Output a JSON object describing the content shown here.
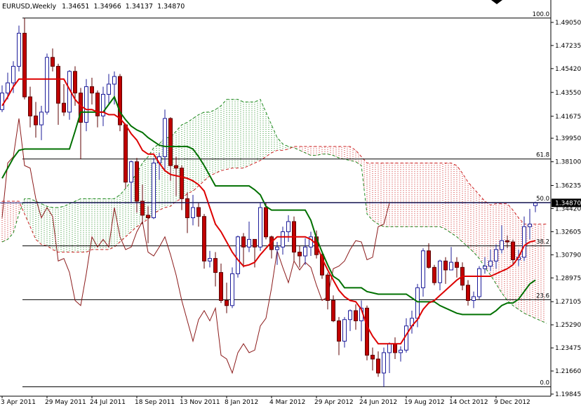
{
  "chart_data": {
    "type": "candlestick",
    "title": "EURUSD,Weekly",
    "header_values": [
      "1.34651",
      "1.34966",
      "1.34137",
      "1.34870"
    ],
    "price_label": "1.34870",
    "categories": [
      "3 Apr 2011",
      null,
      null,
      null,
      null,
      null,
      null,
      null,
      "29 May 2011",
      null,
      null,
      null,
      null,
      null,
      null,
      null,
      "24 Jul 2011",
      null,
      null,
      null,
      null,
      null,
      null,
      null,
      "18 Sep 2011",
      null,
      null,
      null,
      null,
      null,
      null,
      null,
      "13 Nov 2011",
      null,
      null,
      null,
      null,
      null,
      null,
      null,
      "8 Jan 2012",
      null,
      null,
      null,
      null,
      null,
      null,
      null,
      "4 Mar 2012",
      null,
      null,
      null,
      null,
      null,
      null,
      null,
      "29 Apr 2012",
      null,
      null,
      null,
      null,
      null,
      null,
      null,
      "24 Jun 2012",
      null,
      null,
      null,
      null,
      null,
      null,
      null,
      "19 Aug 2012",
      null,
      null,
      null,
      null,
      null,
      null,
      null,
      "14 Oct 2012",
      null,
      null,
      null,
      null,
      null,
      null,
      null,
      "9 Dec 2012",
      null,
      null,
      null,
      null,
      null,
      null,
      null,
      null,
      null
    ],
    "open": [
      1.422,
      1.435,
      1.443,
      1.456,
      1.482,
      1.432,
      1.417,
      1.41,
      1.42,
      1.463,
      1.456,
      1.427,
      1.42,
      1.452,
      1.435,
      1.412,
      1.44,
      1.435,
      1.417,
      1.434,
      1.442,
      1.448,
      1.41,
      1.365,
      1.381,
      1.35,
      1.339,
      1.337,
      1.38,
      1.385,
      1.415,
      1.378,
      1.376,
      1.352,
      1.337,
      1.345,
      1.338,
      1.303,
      1.305,
      1.294,
      1.272,
      1.268,
      1.293,
      1.322,
      1.314,
      1.32,
      1.314,
      1.345,
      1.322,
      1.312,
      1.314,
      1.326,
      1.334,
      1.31,
      1.307,
      1.314,
      1.322,
      1.308,
      1.292,
      1.272,
      1.256,
      1.24,
      1.257,
      1.264,
      1.256,
      1.266,
      1.229,
      1.226,
      1.215,
      1.231,
      1.238,
      1.231,
      1.233,
      1.252,
      1.258,
      1.282,
      1.311,
      1.298,
      1.286,
      1.303,
      1.296,
      1.302,
      1.298,
      1.284,
      1.272,
      1.275,
      1.297,
      1.299,
      1.303,
      1.312,
      1.319,
      1.318,
      1.304,
      1.306,
      1.33,
      1.34651,
      null,
      null
    ],
    "high": [
      1.441,
      1.451,
      1.46,
      1.488,
      1.4939,
      1.44,
      1.428,
      1.425,
      1.466,
      1.47,
      1.458,
      1.442,
      1.453,
      1.456,
      1.439,
      1.446,
      1.447,
      1.437,
      1.44,
      1.45,
      1.452,
      1.45,
      1.411,
      1.382,
      1.384,
      1.363,
      1.346,
      1.384,
      1.388,
      1.422,
      1.416,
      1.385,
      1.378,
      1.357,
      1.355,
      1.349,
      1.34,
      1.311,
      1.31,
      1.301,
      1.286,
      1.298,
      1.323,
      1.325,
      1.334,
      1.32,
      1.349,
      1.349,
      1.323,
      1.318,
      1.33,
      1.339,
      1.338,
      1.315,
      1.321,
      1.326,
      1.327,
      1.311,
      1.294,
      1.276,
      1.259,
      1.259,
      1.265,
      1.269,
      1.272,
      1.268,
      1.235,
      1.232,
      1.235,
      1.239,
      1.243,
      1.236,
      1.258,
      1.264,
      1.285,
      1.313,
      1.317,
      1.3,
      1.304,
      1.306,
      1.314,
      1.306,
      1.302,
      1.288,
      1.279,
      1.299,
      1.306,
      1.312,
      1.316,
      1.331,
      1.323,
      1.32,
      1.312,
      1.338,
      1.344,
      1.34966,
      null,
      null
    ],
    "low": [
      1.42,
      1.43,
      1.435,
      1.452,
      1.43,
      1.408,
      1.4,
      1.398,
      1.418,
      1.452,
      1.41,
      1.417,
      1.414,
      1.425,
      1.383,
      1.405,
      1.426,
      1.408,
      1.409,
      1.426,
      1.426,
      1.405,
      1.36,
      1.349,
      1.341,
      1.332,
      1.317,
      1.336,
      1.367,
      1.375,
      1.366,
      1.354,
      1.343,
      1.325,
      1.331,
      1.33,
      1.297,
      1.298,
      1.283,
      1.27,
      1.262,
      1.266,
      1.29,
      1.298,
      1.31,
      1.298,
      1.311,
      1.32,
      1.305,
      1.3,
      1.308,
      1.318,
      1.303,
      1.298,
      1.3,
      1.307,
      1.305,
      1.289,
      1.265,
      1.255,
      1.229,
      1.235,
      1.248,
      1.249,
      1.24,
      1.225,
      1.217,
      1.212,
      1.2042,
      1.215,
      1.226,
      1.224,
      1.231,
      1.246,
      1.251,
      1.275,
      1.297,
      1.284,
      1.28,
      1.285,
      1.296,
      1.29,
      1.28,
      1.268,
      1.266,
      1.273,
      1.293,
      1.295,
      1.297,
      1.309,
      1.313,
      1.3,
      1.299,
      1.303,
      1.32,
      1.34137,
      null,
      null
    ],
    "close": [
      1.435,
      1.443,
      1.456,
      1.482,
      1.432,
      1.417,
      1.41,
      1.42,
      1.463,
      1.456,
      1.427,
      1.42,
      1.452,
      1.435,
      1.412,
      1.44,
      1.435,
      1.417,
      1.434,
      1.442,
      1.448,
      1.41,
      1.365,
      1.381,
      1.35,
      1.339,
      1.337,
      1.38,
      1.385,
      1.415,
      1.378,
      1.376,
      1.352,
      1.337,
      1.345,
      1.338,
      1.303,
      1.305,
      1.294,
      1.272,
      1.268,
      1.293,
      1.322,
      1.314,
      1.32,
      1.314,
      1.345,
      1.322,
      1.312,
      1.314,
      1.326,
      1.334,
      1.31,
      1.307,
      1.314,
      1.322,
      1.308,
      1.292,
      1.272,
      1.256,
      1.24,
      1.257,
      1.264,
      1.256,
      1.266,
      1.229,
      1.226,
      1.215,
      1.231,
      1.238,
      1.231,
      1.233,
      1.252,
      1.258,
      1.282,
      1.311,
      1.298,
      1.286,
      1.303,
      1.296,
      1.302,
      1.298,
      1.284,
      1.272,
      1.275,
      1.297,
      1.299,
      1.303,
      1.312,
      1.319,
      1.318,
      1.304,
      1.306,
      1.33,
      1.332,
      1.3487,
      null,
      null
    ],
    "up_color": "#ffffff",
    "up_edge_color": "#1c1c9a",
    "down_color": "#c00000",
    "down_edge_color": "#5c0000",
    "overlays": {
      "senkou_a": {
        "color": "#1f8a1f",
        "values": [
          1.318,
          1.32,
          1.325,
          1.34,
          1.352,
          1.352,
          1.35,
          1.348,
          1.346,
          1.345,
          1.345,
          1.346,
          1.348,
          1.35,
          1.352,
          1.352,
          1.352,
          1.352,
          1.352,
          1.352,
          1.352,
          1.355,
          1.36,
          1.366,
          1.372,
          1.38,
          1.385,
          1.392,
          1.395,
          1.4,
          1.4,
          1.405,
          1.41,
          1.412,
          1.415,
          1.418,
          1.42,
          1.42,
          1.422,
          1.425,
          1.43,
          1.43,
          1.43,
          1.428,
          1.428,
          1.428,
          1.43,
          1.42,
          1.41,
          1.4,
          1.395,
          1.393,
          1.392,
          1.39,
          1.388,
          1.386,
          1.386,
          1.387,
          1.387,
          1.386,
          1.384,
          1.383,
          1.382,
          1.381,
          1.378,
          1.34,
          1.335,
          1.332,
          1.33,
          1.33,
          1.33,
          1.33,
          1.33,
          1.33,
          1.33,
          1.33,
          1.33,
          1.33,
          1.33,
          1.328,
          1.325,
          1.322,
          1.318,
          1.314,
          1.31,
          1.305,
          1.298,
          1.292,
          1.285,
          1.278,
          1.272,
          1.268,
          1.265,
          1.262,
          1.26,
          1.258,
          1.256,
          1.254
        ]
      },
      "senkou_b": {
        "color": "#cc2020",
        "values": [
          1.35,
          1.35,
          1.35,
          1.35,
          1.34,
          1.33,
          1.32,
          1.316,
          1.315,
          1.312,
          1.31,
          1.31,
          1.31,
          1.31,
          1.31,
          1.31,
          1.312,
          1.312,
          1.312,
          1.312,
          1.314,
          1.318,
          1.322,
          1.326,
          1.33,
          1.333,
          1.336,
          1.34,
          1.343,
          1.345,
          1.346,
          1.35,
          1.352,
          1.356,
          1.358,
          1.362,
          1.366,
          1.37,
          1.372,
          1.374,
          1.375,
          1.376,
          1.376,
          1.376,
          1.378,
          1.38,
          1.382,
          1.385,
          1.388,
          1.39,
          1.39,
          1.391,
          1.393,
          1.393,
          1.393,
          1.393,
          1.393,
          1.393,
          1.393,
          1.393,
          1.393,
          1.393,
          1.393,
          1.39,
          1.385,
          1.38,
          1.38,
          1.38,
          1.38,
          1.38,
          1.38,
          1.38,
          1.38,
          1.38,
          1.38,
          1.38,
          1.38,
          1.38,
          1.38,
          1.38,
          1.38,
          1.378,
          1.372,
          1.365,
          1.36,
          1.355,
          1.35,
          1.347,
          1.348,
          1.348,
          1.348,
          1.343,
          1.337,
          1.332,
          1.332,
          1.332,
          1.332,
          1.332
        ]
      },
      "chikou_span": {
        "color": "#8b1a1a",
        "width": 1,
        "values": [
          1.337,
          1.38,
          1.385,
          1.415,
          1.378,
          1.376,
          1.352,
          1.337,
          1.345,
          1.338,
          1.303,
          1.305,
          1.294,
          1.272,
          1.268,
          1.293,
          1.322,
          1.314,
          1.32,
          1.314,
          1.345,
          1.322,
          1.312,
          1.314,
          1.326,
          1.334,
          1.31,
          1.307,
          1.314,
          1.322,
          1.308,
          1.292,
          1.272,
          1.256,
          1.24,
          1.257,
          1.264,
          1.256,
          1.266,
          1.229,
          1.226,
          1.215,
          1.231,
          1.238,
          1.231,
          1.233,
          1.252,
          1.258,
          1.282,
          1.311,
          1.298,
          1.286,
          1.303,
          1.296,
          1.302,
          1.298,
          1.284,
          1.272,
          1.275,
          1.297,
          1.299,
          1.303,
          1.312,
          1.319,
          1.318,
          1.304,
          1.306,
          1.33,
          1.332,
          1.3487,
          null,
          null,
          null,
          null,
          null,
          null,
          null,
          null,
          null,
          null,
          null,
          null,
          null,
          null,
          null,
          null,
          null,
          null,
          null,
          null,
          null,
          null,
          null,
          null,
          null,
          null,
          null,
          null
        ]
      },
      "kijun_sen": {
        "color": "#007000",
        "width": 2,
        "values": [
          1.368,
          1.376,
          1.384,
          1.39,
          1.391,
          1.391,
          1.391,
          1.391,
          1.391,
          1.391,
          1.391,
          1.391,
          1.391,
          1.405,
          1.42,
          1.42,
          1.42,
          1.42,
          1.42,
          1.426,
          1.432,
          1.42,
          1.414,
          1.409,
          1.406,
          1.404,
          1.4,
          1.397,
          1.394,
          1.393,
          1.393,
          1.393,
          1.393,
          1.393,
          1.391,
          1.385,
          1.378,
          1.37,
          1.362,
          1.362,
          1.362,
          1.362,
          1.362,
          1.362,
          1.362,
          1.359,
          1.355,
          1.346,
          1.343,
          1.343,
          1.343,
          1.343,
          1.343,
          1.343,
          1.343,
          1.335,
          1.321,
          1.31,
          1.3,
          1.291,
          1.288,
          1.282,
          1.282,
          1.282,
          1.282,
          1.279,
          1.278,
          1.277,
          1.277,
          1.277,
          1.277,
          1.277,
          1.277,
          1.274,
          1.271,
          1.271,
          1.271,
          1.271,
          1.268,
          1.266,
          1.264,
          1.262,
          1.261,
          1.261,
          1.261,
          1.261,
          1.261,
          1.261,
          1.264,
          1.268,
          1.27,
          1.27,
          1.273,
          1.279,
          1.285,
          1.288,
          null,
          null
        ]
      },
      "tenkan_sen": {
        "color": "#dd0000",
        "width": 2,
        "values": [
          1.425,
          1.432,
          1.44,
          1.446,
          1.446,
          1.446,
          1.446,
          1.446,
          1.446,
          1.446,
          1.446,
          1.446,
          1.438,
          1.43,
          1.425,
          1.422,
          1.422,
          1.42,
          1.42,
          1.418,
          1.418,
          1.415,
          1.41,
          1.403,
          1.398,
          1.39,
          1.387,
          1.387,
          1.38,
          1.374,
          1.371,
          1.37,
          1.369,
          1.368,
          1.366,
          1.363,
          1.358,
          1.345,
          1.332,
          1.326,
          1.318,
          1.31,
          1.304,
          1.299,
          1.3,
          1.302,
          1.308,
          1.313,
          1.318,
          1.322,
          1.322,
          1.322,
          1.322,
          1.322,
          1.322,
          1.32,
          1.316,
          1.305,
          1.296,
          1.288,
          1.28,
          1.275,
          1.272,
          1.271,
          1.265,
          1.252,
          1.244,
          1.238,
          1.238,
          1.238,
          1.238,
          1.238,
          1.245,
          1.252,
          1.257,
          1.265,
          1.27,
          1.272,
          1.276,
          1.28,
          1.284,
          1.288,
          1.291,
          1.291,
          1.291,
          1.291,
          1.291,
          1.291,
          1.293,
          1.295,
          1.297,
          1.3,
          1.306,
          1.315,
          1.318,
          1.319,
          null,
          null
        ]
      }
    },
    "fib_levels": [
      {
        "value": 1.4939,
        "label": "100.0"
      },
      {
        "value": 1.3832,
        "label": "61.8"
      },
      {
        "value": 1.349,
        "label": "50.0"
      },
      {
        "value": 1.3149,
        "label": "38.2"
      },
      {
        "value": 1.2726,
        "label": "23.6"
      },
      {
        "value": 1.2042,
        "label": "0.0"
      }
    ],
    "ylim": [
      1.1968,
      1.5081
    ],
    "yticks": [
      {
        "value": 1.4905,
        "label": "1.49050"
      },
      {
        "value": 1.47235,
        "label": "1.47235"
      },
      {
        "value": 1.4542,
        "label": "1.45420"
      },
      {
        "value": 1.4355,
        "label": "1.43550"
      },
      {
        "value": 1.41675,
        "label": "1.41675"
      },
      {
        "value": 1.3995,
        "label": "1.39950"
      },
      {
        "value": 1.381,
        "label": "1.38100"
      },
      {
        "value": 1.36235,
        "label": "1.36235"
      },
      {
        "value": 1.3442,
        "label": "1.34420"
      },
      {
        "value": 1.32605,
        "label": "1.32605"
      },
      {
        "value": 1.3079,
        "label": "1.30790"
      },
      {
        "value": 1.28975,
        "label": "1.28975"
      },
      {
        "value": 1.27105,
        "label": "1.27105"
      },
      {
        "value": 1.2529,
        "label": "1.25290"
      },
      {
        "value": 1.23475,
        "label": "1.23475"
      },
      {
        "value": 1.2166,
        "label": "1.21660"
      },
      {
        "value": 1.19845,
        "label": "1.19845"
      }
    ]
  }
}
